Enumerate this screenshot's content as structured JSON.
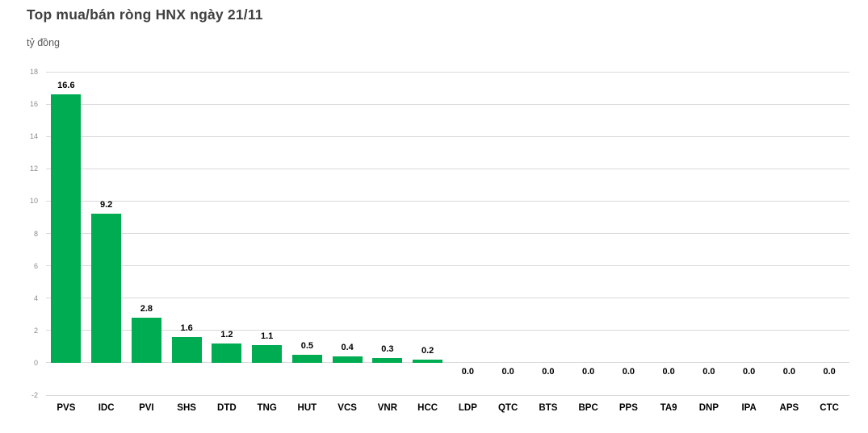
{
  "chart_data": {
    "type": "bar",
    "title": "Top mua/bán ròng HNX ngày 21/11",
    "unit_label": "tỷ đồng",
    "categories": [
      "PVS",
      "IDC",
      "PVI",
      "SHS",
      "DTD",
      "TNG",
      "HUT",
      "VCS",
      "VNR",
      "HCC",
      "LDP",
      "QTC",
      "BTS",
      "BPC",
      "PPS",
      "TA9",
      "DNP",
      "IPA",
      "APS",
      "CTC"
    ],
    "values": [
      16.6,
      9.2,
      2.8,
      1.6,
      1.2,
      1.1,
      0.5,
      0.4,
      0.3,
      0.2,
      0.0,
      0.0,
      0.0,
      0.0,
      0.0,
      0.0,
      0.0,
      0.0,
      0.0,
      0.0
    ],
    "xlabel": "",
    "ylabel": "tỷ đồng",
    "ylim": [
      -2,
      18
    ],
    "yticks": [
      18,
      16,
      14,
      12,
      10,
      8,
      6,
      4,
      2,
      0,
      -2
    ],
    "grid": true,
    "legend_position": "none",
    "colors": {
      "bar": "#00AC52",
      "gridline": "#D9D9D9",
      "axis_tick_text": "#8C8C8C",
      "title_text": "#404040",
      "subtitle_text": "#595959",
      "label_text": "#000000",
      "background": "#FFFFFF"
    }
  }
}
